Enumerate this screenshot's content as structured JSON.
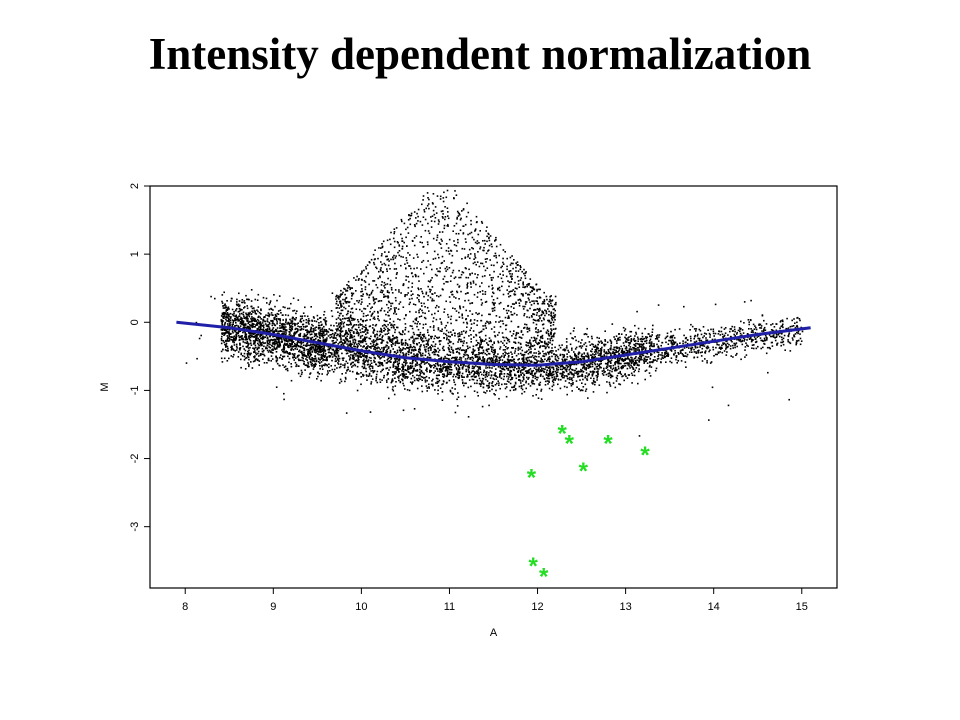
{
  "slide": {
    "title": "Intensity dependent normalization"
  },
  "chart_data": {
    "type": "scatter",
    "title": "",
    "xlabel": "A",
    "ylabel": "M",
    "xlim": [
      7.6,
      15.4
    ],
    "ylim": [
      -3.9,
      2.0
    ],
    "x_ticks": [
      8,
      9,
      10,
      11,
      12,
      13,
      14,
      15
    ],
    "y_ticks": [
      -3,
      -2,
      -1,
      0,
      1,
      2
    ],
    "grid": false,
    "legend": "none",
    "colors": {
      "points": "#000000",
      "curve": "#1f1fa8",
      "outliers": "#22dd22"
    },
    "series": [
      {
        "kind": "points",
        "count_shown": "approx. 8000 spots",
        "description_clusters": [
          {
            "x_range": [
              8.4,
              9.6
            ],
            "m_center": -0.15,
            "m_spread": 0.35
          },
          {
            "x_range": [
              9.6,
              11.8
            ],
            "m_center": -0.55,
            "m_spread": 0.35
          },
          {
            "x_range": [
              11.8,
              13.3
            ],
            "m_center": -0.65,
            "m_spread": 0.3
          },
          {
            "x_range": [
              13.3,
              15.0
            ],
            "m_center": -0.25,
            "m_spread": 0.2
          },
          {
            "x_range": [
              9.7,
              12.2
            ],
            "m_center": 0.5,
            "m_spread": 0.55
          }
        ]
      },
      {
        "kind": "curve",
        "x": [
          7.9,
          8.5,
          9.0,
          9.5,
          10.0,
          10.5,
          11.0,
          11.5,
          12.0,
          12.5,
          13.0,
          13.5,
          14.0,
          14.5,
          15.1
        ],
        "y": [
          0.0,
          -0.08,
          -0.18,
          -0.3,
          -0.42,
          -0.52,
          -0.58,
          -0.62,
          -0.63,
          -0.58,
          -0.48,
          -0.38,
          -0.28,
          -0.18,
          -0.08
        ]
      },
      {
        "kind": "outliers",
        "marker": "*",
        "x": [
          11.93,
          12.28,
          12.36,
          12.8,
          13.22,
          12.52,
          11.95,
          12.07
        ],
        "y": [
          -2.25,
          -1.6,
          -1.75,
          -1.75,
          -1.92,
          -2.15,
          -3.55,
          -3.7
        ]
      }
    ]
  }
}
